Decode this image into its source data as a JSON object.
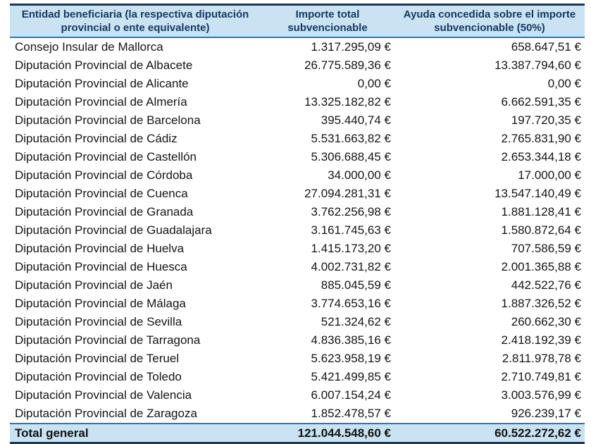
{
  "table": {
    "columns": [
      {
        "label": "Entidad beneficiaria (la respectiva diputación provincial o ente equivalente)"
      },
      {
        "label": "Importe total subvencionable"
      },
      {
        "label": "Ayuda concedida sobre el importe subvencionable (50%)"
      }
    ],
    "rows": [
      {
        "entity": "Consejo Insular de Mallorca",
        "importe": "1.317.295,09 €",
        "ayuda": "658.647,51 €"
      },
      {
        "entity": "Diputación Provincial de Albacete",
        "importe": "26.775.589,36 €",
        "ayuda": "13.387.794,60 €"
      },
      {
        "entity": "Diputación Provincial de Alicante",
        "importe": "0,00 €",
        "ayuda": "0,00 €"
      },
      {
        "entity": "Diputación Provincial de Almería",
        "importe": "13.325.182,82 €",
        "ayuda": "6.662.591,35 €"
      },
      {
        "entity": "Diputación Provincial de Barcelona",
        "importe": "395.440,74 €",
        "ayuda": "197.720,35 €"
      },
      {
        "entity": "Diputación Provincial de Cádiz",
        "importe": "5.531.663,82 €",
        "ayuda": "2.765.831,90 €"
      },
      {
        "entity": "Diputación Provincial de Castellón",
        "importe": "5.306.688,45 €",
        "ayuda": "2.653.344,18 €"
      },
      {
        "entity": "Diputación Provincial de Córdoba",
        "importe": "34.000,00 €",
        "ayuda": "17.000,00 €"
      },
      {
        "entity": "Diputación Provincial de Cuenca",
        "importe": "27.094.281,31 €",
        "ayuda": "13.547.140,49 €"
      },
      {
        "entity": "Diputación Provincial de Granada",
        "importe": "3.762.256,98 €",
        "ayuda": "1.881.128,41 €"
      },
      {
        "entity": "Diputación Provincial de Guadalajara",
        "importe": "3.161.745,63 €",
        "ayuda": "1.580.872,64 €"
      },
      {
        "entity": "Diputación Provincial de Huelva",
        "importe": "1.415.173,20 €",
        "ayuda": "707.586,59 €"
      },
      {
        "entity": "Diputación Provincial de Huesca",
        "importe": "4.002.731,82 €",
        "ayuda": "2.001.365,88 €"
      },
      {
        "entity": "Diputación Provincial de Jaén",
        "importe": "885.045,59 €",
        "ayuda": "442.522,76 €"
      },
      {
        "entity": "Diputación Provincial de Málaga",
        "importe": "3.774.653,16 €",
        "ayuda": "1.887.326,52 €"
      },
      {
        "entity": "Diputación Provincial de Sevilla",
        "importe": "521.324,62 €",
        "ayuda": "260.662,30 €"
      },
      {
        "entity": "Diputación Provincial de Tarragona",
        "importe": "4.836.385,16 €",
        "ayuda": "2.418.192,39 €"
      },
      {
        "entity": "Diputación Provincial de Teruel",
        "importe": "5.623.958,19 €",
        "ayuda": "2.811.978,78 €"
      },
      {
        "entity": "Diputación Provincial de Toledo",
        "importe": "5.421.499,85 €",
        "ayuda": "2.710.749,81 €"
      },
      {
        "entity": "Diputación Provincial de Valencia",
        "importe": "6.007.154,24 €",
        "ayuda": "3.003.576,99 €"
      },
      {
        "entity": "Diputación Provincial de Zaragoza",
        "importe": "1.852.478,57 €",
        "ayuda": "926.239,17 €"
      }
    ],
    "total": {
      "label": "Total general",
      "importe": "121.044.548,60 €",
      "ayuda": "60.522.272,62 €"
    },
    "colors": {
      "header_bg": "#c9e3f3",
      "dark_border": "#1c3557",
      "blue_border": "#2e75b6",
      "header_text": "#17365d"
    }
  }
}
